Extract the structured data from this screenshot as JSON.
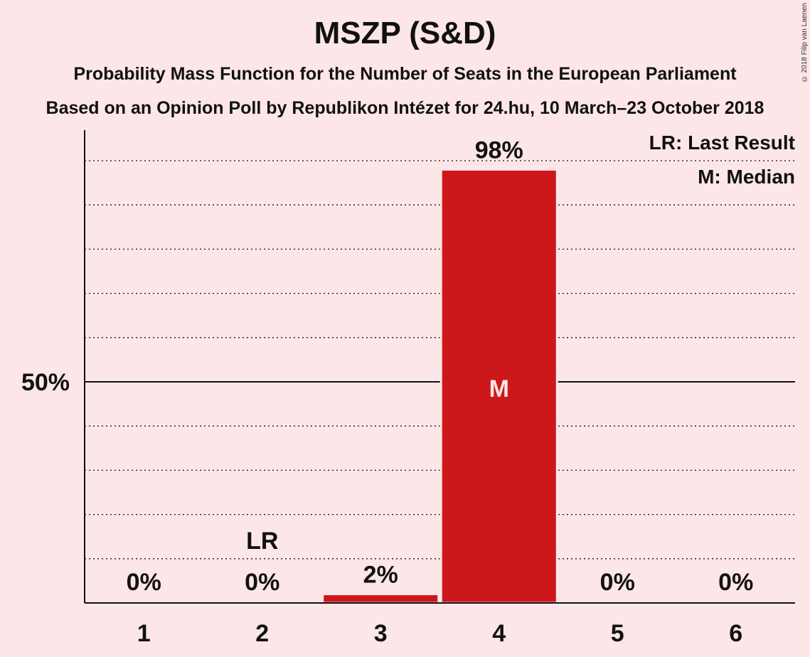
{
  "copyright": "© 2018 Filip van Laenen",
  "chart_data": {
    "type": "bar",
    "title": "MSZP (S&D)",
    "subtitle": "Probability Mass Function for the Number of Seats in the European Parliament",
    "subtitle2": "Based on an Opinion Poll by Republikon Intézet for 24.hu, 10 March–23 October 2018",
    "categories": [
      "1",
      "2",
      "3",
      "4",
      "5",
      "6"
    ],
    "values": [
      0,
      0,
      2,
      98,
      0,
      0
    ],
    "value_labels": [
      "0%",
      "0%",
      "2%",
      "98%",
      "0%",
      "0%"
    ],
    "ylim": [
      0,
      107
    ],
    "y_tick_labels": [
      {
        "value": 50,
        "label": "50%"
      }
    ],
    "grid_step": 10,
    "last_result_category": "2",
    "median_category": "4",
    "lr_marker": "LR",
    "median_marker": "M",
    "legend": [
      "LR: Last Result",
      "M: Median"
    ],
    "legend_position": "top-right",
    "colors": {
      "bar": "#cc181b",
      "background": "#fce6e8",
      "axis": "#111111",
      "median_text": "#fce6e8"
    }
  }
}
